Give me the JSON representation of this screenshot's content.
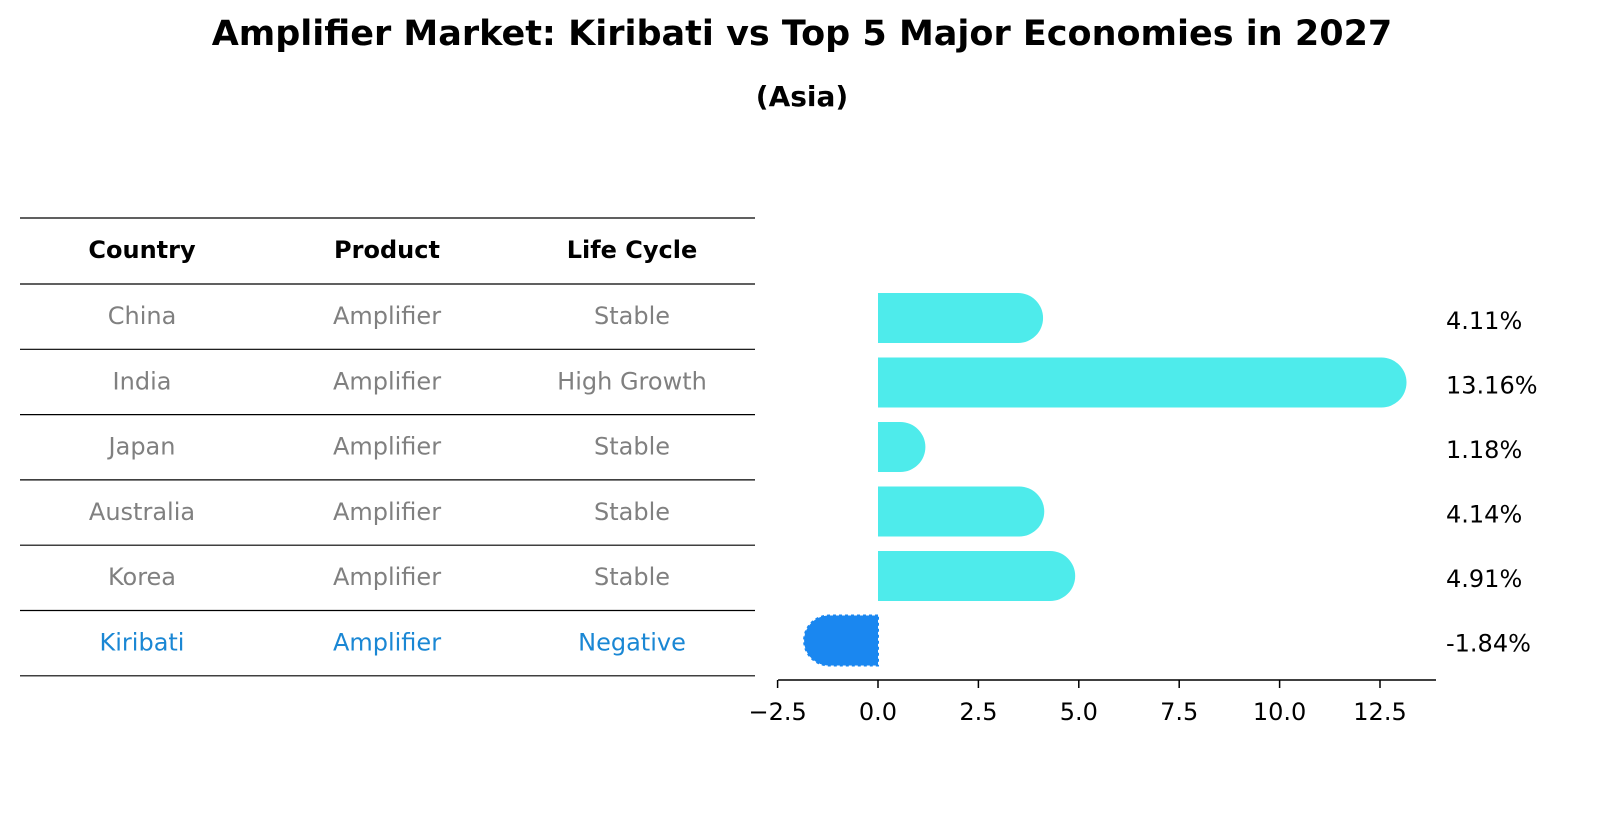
{
  "title": "Amplifier Market: Kiribati vs Top 5 Major Economies in 2027",
  "subtitle": "(Asia)",
  "colors": {
    "normal_bar": "#4eebeb",
    "highlight_bar": "#1a87f0",
    "normal_text": "#808080",
    "highlight_text": "#1a87d4"
  },
  "table": {
    "headers": [
      "Country",
      "Product",
      "Life Cycle"
    ],
    "rows": [
      {
        "country": "China",
        "product": "Amplifier",
        "life_cycle": "Stable",
        "highlight": false
      },
      {
        "country": "India",
        "product": "Amplifier",
        "life_cycle": "High Growth",
        "highlight": false
      },
      {
        "country": "Japan",
        "product": "Amplifier",
        "life_cycle": "Stable",
        "highlight": false
      },
      {
        "country": "Australia",
        "product": "Amplifier",
        "life_cycle": "Stable",
        "highlight": false
      },
      {
        "country": "Korea",
        "product": "Amplifier",
        "life_cycle": "Stable",
        "highlight": false
      },
      {
        "country": "Kiribati",
        "product": "Amplifier",
        "life_cycle": "Negative",
        "highlight": true
      }
    ]
  },
  "chart_data": {
    "type": "bar",
    "orientation": "horizontal",
    "categories": [
      "China",
      "India",
      "Japan",
      "Australia",
      "Korea",
      "Kiribati"
    ],
    "values": [
      4.11,
      13.16,
      1.18,
      4.14,
      4.91,
      -1.84
    ],
    "value_labels": [
      "4.11%",
      "13.16%",
      "1.18%",
      "4.14%",
      "4.91%",
      "-1.84%"
    ],
    "highlight": "Kiribati",
    "xlim": [
      -2.5,
      14
    ],
    "xticks": [
      -2.5,
      0.0,
      2.5,
      5.0,
      7.5,
      10.0,
      12.5
    ],
    "xtick_labels": [
      "−2.5",
      "0.0",
      "2.5",
      "5.0",
      "7.5",
      "10.0",
      "12.5"
    ],
    "xlabel": "",
    "ylabel": "",
    "grid": false
  }
}
